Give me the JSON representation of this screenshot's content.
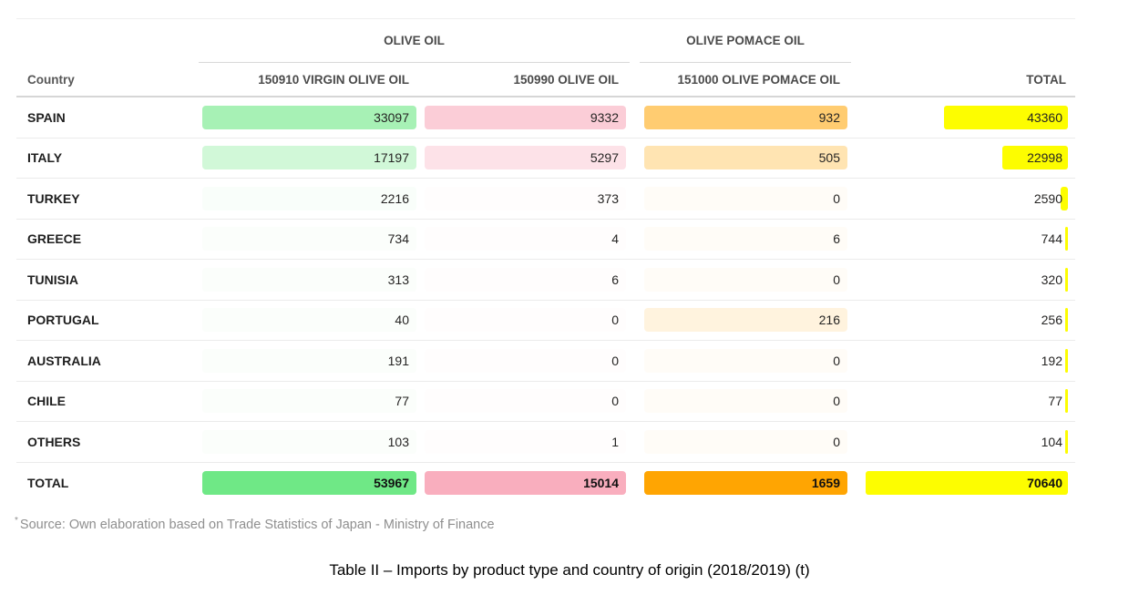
{
  "chart_data": {
    "type": "table",
    "title": "Table II – Imports by product type and country of origin (2018/2019) (t)",
    "group_headers": [
      {
        "label": "OLIVE OIL",
        "spans_columns": [
          "150910 VIRGIN OLIVE OIL",
          "150990 OLIVE OIL"
        ]
      },
      {
        "label": "OLIVE POMACE OIL",
        "spans_columns": [
          "151000 OLIVE POMACE OIL"
        ]
      }
    ],
    "country_header": "Country",
    "columns": [
      {
        "key": "virgin",
        "label": "150910 VIRGIN OLIVE OIL",
        "format": "color-scale",
        "max": 53967,
        "color": "#6fe886"
      },
      {
        "key": "olive",
        "label": "150990 OLIVE OIL",
        "format": "color-scale",
        "max": 15014,
        "color": "#f9aebe"
      },
      {
        "key": "pomace",
        "label": "151000 OLIVE POMACE OIL",
        "format": "color-scale",
        "max": 1659,
        "color": "#ffa502"
      },
      {
        "key": "total",
        "label": "TOTAL",
        "format": "data-bar",
        "max": 70640,
        "color": "#fdfd00"
      }
    ],
    "rows": [
      {
        "country": "SPAIN",
        "virgin": 33097,
        "olive": 9332,
        "pomace": 932,
        "total": 43360
      },
      {
        "country": "ITALY",
        "virgin": 17197,
        "olive": 5297,
        "pomace": 505,
        "total": 22998
      },
      {
        "country": "TURKEY",
        "virgin": 2216,
        "olive": 373,
        "pomace": 0,
        "total": 2590
      },
      {
        "country": "GREECE",
        "virgin": 734,
        "olive": 4,
        "pomace": 6,
        "total": 744
      },
      {
        "country": "TUNISIA",
        "virgin": 313,
        "olive": 6,
        "pomace": 0,
        "total": 320
      },
      {
        "country": "PORTUGAL",
        "virgin": 40,
        "olive": 0,
        "pomace": 216,
        "total": 256
      },
      {
        "country": "AUSTRALIA",
        "virgin": 191,
        "olive": 0,
        "pomace": 0,
        "total": 192
      },
      {
        "country": "CHILE",
        "virgin": 77,
        "olive": 0,
        "pomace": 0,
        "total": 77
      },
      {
        "country": "OTHERS",
        "virgin": 103,
        "olive": 1,
        "pomace": 0,
        "total": 104
      },
      {
        "country": "TOTAL",
        "virgin": 53967,
        "olive": 15014,
        "pomace": 1659,
        "total": 70640,
        "is_total": true
      }
    ]
  },
  "footnote": {
    "marker": "*",
    "text": "Source: Own elaboration based on Trade Statistics of Japan - Ministry of Finance"
  },
  "caption": "Table II – Imports by product type and country of origin (2018/2019) (t)"
}
